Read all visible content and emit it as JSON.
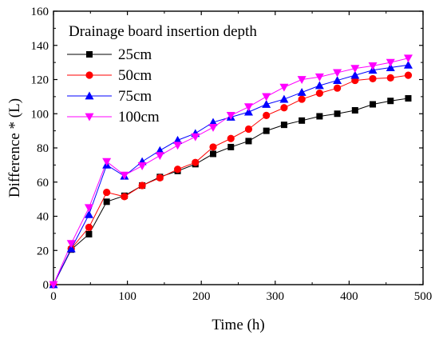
{
  "chart_data": {
    "type": "line",
    "title": "",
    "xlabel": "Time (h)",
    "ylabel": "Difference * (L)",
    "xlim": [
      0,
      500
    ],
    "ylim": [
      0,
      160
    ],
    "xticks": [
      "0",
      "100",
      "200",
      "300",
      "400",
      "500"
    ],
    "yticks": [
      "0",
      "20",
      "40",
      "60",
      "80",
      "100",
      "120",
      "140",
      "160"
    ],
    "grid": false,
    "legend": {
      "title": "Drainage board insertion depth",
      "placement": "top-left"
    },
    "x": [
      0,
      24,
      48,
      72,
      96,
      120,
      144,
      168,
      192,
      216,
      240,
      264,
      288,
      312,
      336,
      360,
      384,
      408,
      432,
      456,
      480
    ],
    "series": [
      {
        "name": "25cm",
        "color": "#000000",
        "marker": "square",
        "values": [
          0,
          20.5,
          29.5,
          48.5,
          52,
          58,
          63,
          66.5,
          70.5,
          76.5,
          80.5,
          84,
          90,
          93.5,
          96,
          98.5,
          100,
          102,
          105.5,
          107.5,
          109
        ]
      },
      {
        "name": "50cm",
        "color": "#ff0000",
        "marker": "circle",
        "values": [
          0,
          21,
          33.5,
          54,
          51.5,
          58,
          62.5,
          67.5,
          71.5,
          80.5,
          85.5,
          91,
          99,
          103.5,
          108.5,
          112,
          115,
          119.5,
          120.5,
          121,
          122.5
        ]
      },
      {
        "name": "75cm",
        "color": "#0000ff",
        "marker": "triangle-up",
        "values": [
          0,
          21,
          41,
          70,
          63.5,
          72,
          78.5,
          84.5,
          88.5,
          95,
          98,
          101,
          105.5,
          108.5,
          112.5,
          116.5,
          119.5,
          122.5,
          125.5,
          127,
          128.5
        ]
      },
      {
        "name": "100cm",
        "color": "#ff00ff",
        "marker": "triangle-down",
        "values": [
          0,
          24,
          45,
          72,
          64,
          69.5,
          75.5,
          81.5,
          86.5,
          92,
          99,
          104,
          110,
          115.5,
          120,
          121.5,
          124,
          126.5,
          128,
          130,
          132.5
        ]
      }
    ]
  }
}
